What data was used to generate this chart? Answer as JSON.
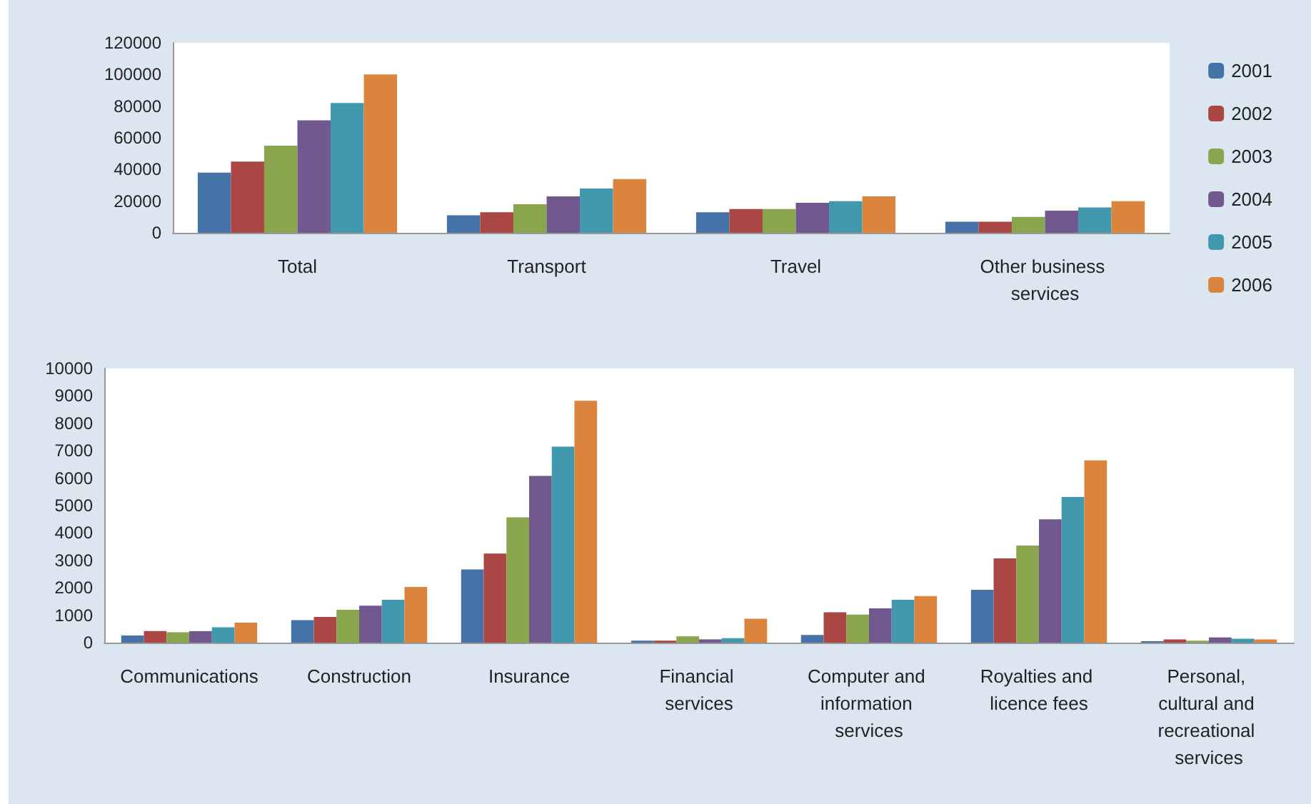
{
  "chart_data": [
    {
      "type": "bar",
      "categories": [
        "Total",
        "Transport",
        "Travel",
        "Other business services"
      ],
      "series": [
        {
          "name": "2001",
          "color": "#4572a7",
          "values": [
            38000,
            11000,
            13000,
            7000
          ]
        },
        {
          "name": "2002",
          "color": "#aa4643",
          "values": [
            45000,
            13000,
            15000,
            7000
          ]
        },
        {
          "name": "2003",
          "color": "#89a54e",
          "values": [
            55000,
            18000,
            15000,
            10000
          ]
        },
        {
          "name": "2004",
          "color": "#71588f",
          "values": [
            71000,
            23000,
            19000,
            14000
          ]
        },
        {
          "name": "2005",
          "color": "#4198af",
          "values": [
            82000,
            28000,
            20000,
            16000
          ]
        },
        {
          "name": "2006",
          "color": "#db843d",
          "values": [
            100000,
            34000,
            23000,
            20000
          ]
        }
      ],
      "ylim": [
        0,
        120000
      ],
      "yticks": [
        0,
        20000,
        40000,
        60000,
        80000,
        100000,
        120000
      ],
      "grid": false,
      "legend": "right"
    },
    {
      "type": "bar",
      "categories": [
        "Communications",
        "Construction",
        "Insurance",
        "Financial services",
        "Computer and information services",
        "Royalties and licence fees",
        "Personal, cultural and recreational services"
      ],
      "series": [
        {
          "name": "2001",
          "color": "#4572a7",
          "values": [
            260,
            820,
            2670,
            70,
            280,
            1930,
            50
          ]
        },
        {
          "name": "2002",
          "color": "#aa4643",
          "values": [
            420,
            940,
            3250,
            70,
            1110,
            3070,
            120
          ]
        },
        {
          "name": "2003",
          "color": "#89a54e",
          "values": [
            380,
            1200,
            4570,
            230,
            1020,
            3540,
            70
          ]
        },
        {
          "name": "2004",
          "color": "#71588f",
          "values": [
            420,
            1350,
            6080,
            120,
            1250,
            4500,
            190
          ]
        },
        {
          "name": "2005",
          "color": "#4198af",
          "values": [
            560,
            1560,
            7150,
            160,
            1560,
            5310,
            140
          ]
        },
        {
          "name": "2006",
          "color": "#db843d",
          "values": [
            730,
            2030,
            8820,
            870,
            1700,
            6650,
            120
          ]
        }
      ],
      "ylim": [
        0,
        10000
      ],
      "yticks": [
        0,
        1000,
        2000,
        3000,
        4000,
        5000,
        6000,
        7000,
        8000,
        9000,
        10000
      ],
      "grid": false,
      "legend": false
    }
  ]
}
